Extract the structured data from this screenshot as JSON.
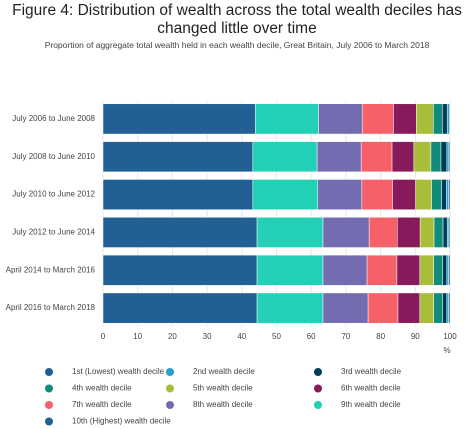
{
  "chart_data": {
    "type": "stacked-barh",
    "title": "Figure 4: Distribution of wealth across the total wealth deciles has changed little over time",
    "subtitle": "Proportion of aggregate total wealth held in each wealth decile, Great Britain, July 2006 to March 2018",
    "x_label": "%",
    "categories": [
      "July 2006 to June 2008",
      "July 2008 to June 2010",
      "July 2010 to June 2012",
      "July 2012 to June 2014",
      "April 2014 to March 2016",
      "April 2016 to March 2018"
    ],
    "series": [
      {
        "name": "1st (Lowest) wealth decile",
        "color": "#206095",
        "values": [
          0.2,
          0.3,
          0.4,
          0.3,
          0.4,
          0.4
        ]
      },
      {
        "name": "2nd wealth decile",
        "color": "#27a0cc",
        "values": [
          0.6,
          0.6,
          0.6,
          0.5,
          0.5,
          0.5
        ]
      },
      {
        "name": "3rd wealth decile",
        "color": "#003c57",
        "values": [
          1.4,
          1.7,
          1.4,
          1.2,
          1.2,
          1.2
        ]
      },
      {
        "name": "4th wealth decile",
        "color": "#118c7b",
        "values": [
          2.6,
          2.9,
          2.9,
          2.6,
          2.6,
          2.6
        ]
      },
      {
        "name": "5th wealth decile",
        "color": "#a8bd3a",
        "values": [
          4.9,
          4.9,
          4.6,
          4.0,
          4.0,
          4.0
        ]
      },
      {
        "name": "6th wealth decile",
        "color": "#871a5b",
        "values": [
          6.6,
          6.3,
          6.6,
          6.6,
          6.6,
          6.3
        ]
      },
      {
        "name": "7th wealth decile",
        "color": "#f66068",
        "values": [
          9.0,
          8.9,
          8.9,
          8.1,
          8.6,
          8.6
        ]
      },
      {
        "name": "8th wealth decile",
        "color": "#746cb1",
        "values": [
          12.6,
          12.7,
          12.7,
          13.3,
          12.7,
          13.0
        ]
      },
      {
        "name": "9th wealth decile",
        "color": "#22d0b6",
        "values": [
          18.2,
          18.5,
          18.7,
          19.0,
          19.0,
          19.0
        ]
      },
      {
        "name": "10th (Highest) wealth decile",
        "color": "#206095",
        "values": [
          43.9,
          43.2,
          43.2,
          44.4,
          44.4,
          44.4
        ]
      }
    ],
    "xlim": [
      0,
      100
    ],
    "xticks": [
      0,
      10,
      20,
      30,
      40,
      50,
      60,
      70,
      80,
      90,
      100
    ],
    "grid": true
  }
}
